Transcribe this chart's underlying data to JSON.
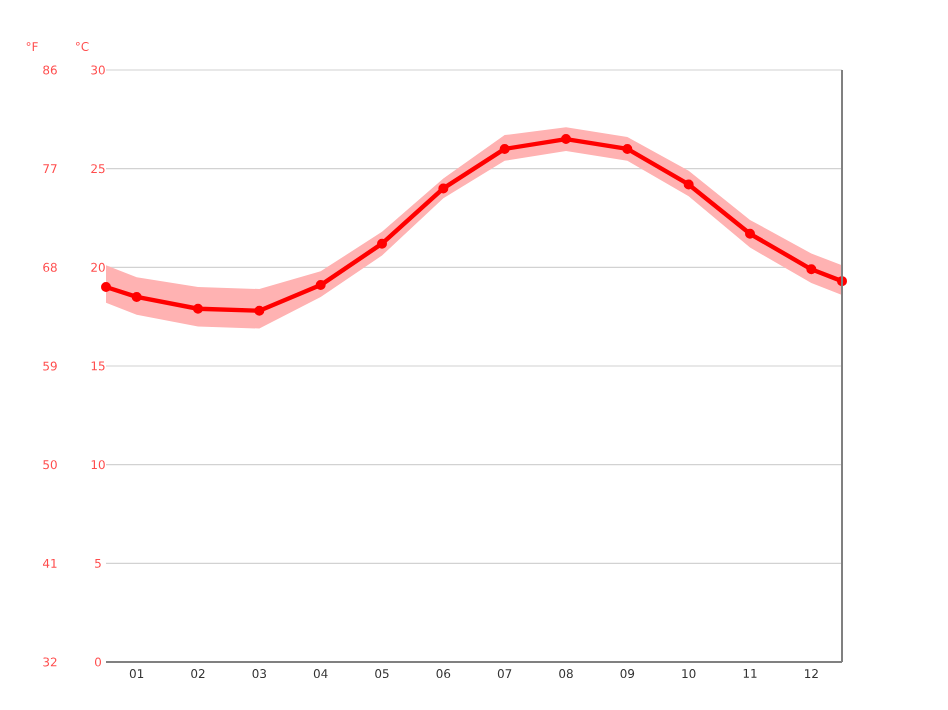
{
  "chart_data": {
    "type": "line",
    "ylabel": "°C",
    "y2label": "°F",
    "x": [
      0.5,
      1,
      2,
      3,
      4,
      5,
      6,
      7,
      8,
      9,
      10,
      11,
      12,
      12.5
    ],
    "series": [
      {
        "color": "#ff0000",
        "values": [
          19.0,
          18.5,
          17.9,
          17.8,
          19.1,
          21.2,
          24.0,
          26.0,
          26.5,
          26.0,
          24.2,
          21.7,
          19.9,
          19.3
        ],
        "lower": [
          18.2,
          17.6,
          17.0,
          16.9,
          18.5,
          20.6,
          23.5,
          25.4,
          25.9,
          25.4,
          23.6,
          21.0,
          19.2,
          18.6
        ],
        "upper": [
          20.1,
          19.5,
          19.0,
          18.9,
          19.8,
          21.8,
          24.5,
          26.7,
          27.1,
          26.6,
          24.9,
          22.4,
          20.7,
          20.1
        ]
      }
    ],
    "xlim": [
      0.5,
      12.5
    ],
    "xticks": [
      {
        "value": 1,
        "label": "01"
      },
      {
        "value": 2,
        "label": "02"
      },
      {
        "value": 3,
        "label": "03"
      },
      {
        "value": 4,
        "label": "04"
      },
      {
        "value": 5,
        "label": "05"
      },
      {
        "value": 6,
        "label": "06"
      },
      {
        "value": 7,
        "label": "07"
      },
      {
        "value": 8,
        "label": "08"
      },
      {
        "value": 9,
        "label": "09"
      },
      {
        "value": 10,
        "label": "10"
      },
      {
        "value": 11,
        "label": "11"
      },
      {
        "value": 12,
        "label": "12"
      }
    ],
    "ylim": [
      0,
      30
    ],
    "yticks": [
      0,
      5,
      10,
      15,
      20,
      25,
      30
    ],
    "y2lim": [
      32,
      86
    ],
    "y2ticks": [
      32,
      41,
      50,
      59,
      68,
      77,
      86
    ],
    "grid": "y",
    "marker": "circle",
    "line_style": "solid"
  }
}
